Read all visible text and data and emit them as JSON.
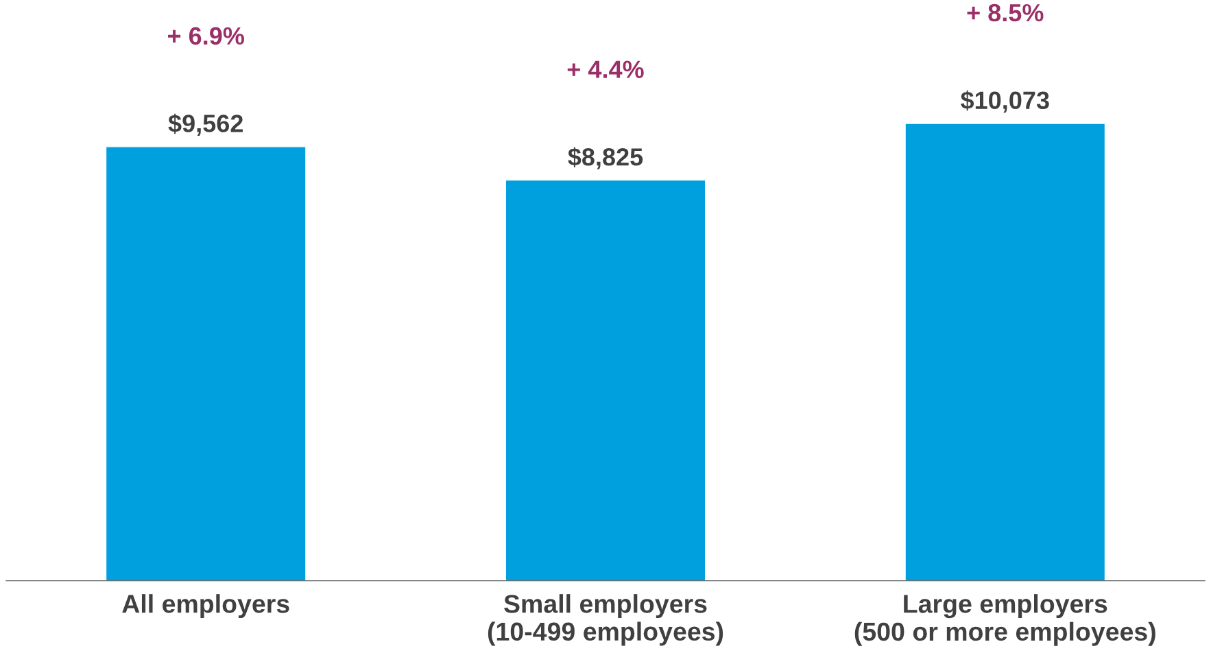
{
  "chart_data": {
    "type": "bar",
    "categories": [
      "All employers",
      "Small employers\n(10-499 employees)",
      "Large employers\n(500 or more employees)"
    ],
    "values": [
      9562,
      8825,
      10073
    ],
    "value_labels": [
      "$9,562",
      "$8,825",
      "$10,073"
    ],
    "color": "#00a0df",
    "grid": false,
    "legend": false,
    "annotations": [
      "+ 6.9%",
      "+ 4.4%",
      "+ 8.5%"
    ]
  }
}
